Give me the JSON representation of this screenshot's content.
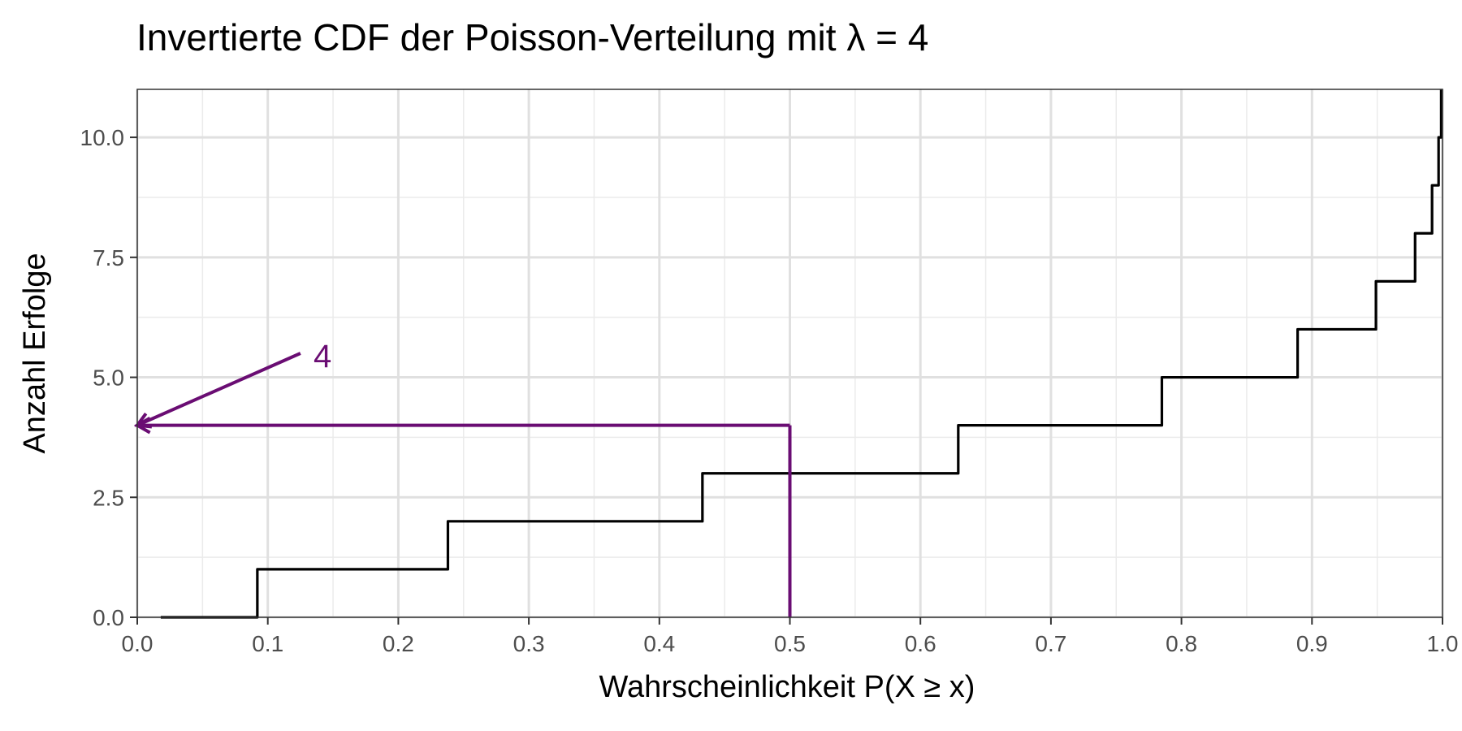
{
  "chart_data": {
    "type": "line",
    "title": "Invertierte CDF der Poisson-Verteilung mit λ = 4",
    "xlabel": "Wahrscheinlichkeit P(X ≥ x)",
    "ylabel": "Anzahl Erfolge",
    "xlim": [
      0,
      1
    ],
    "ylim": [
      0,
      11
    ],
    "x_ticks": [
      0.0,
      0.1,
      0.2,
      0.3,
      0.4,
      0.5,
      0.6,
      0.7,
      0.8,
      0.9,
      1.0
    ],
    "x_tick_labels": [
      "0.0",
      "0.1",
      "0.2",
      "0.3",
      "0.4",
      "0.5",
      "0.6",
      "0.7",
      "0.8",
      "0.9",
      "1.0"
    ],
    "y_ticks": [
      0,
      2.5,
      5,
      7.5,
      10
    ],
    "y_tick_labels": [
      "0.0",
      "2.5",
      "5.0",
      "7.5",
      "10.0"
    ],
    "grid": true,
    "series": [
      {
        "color": "#000000",
        "x": [
          0.018,
          0.092,
          0.238,
          0.433,
          0.629,
          0.785,
          0.889,
          0.949,
          0.979,
          0.992,
          0.997,
          0.999
        ],
        "y": [
          0,
          1,
          2,
          3,
          4,
          5,
          6,
          7,
          8,
          9,
          10,
          11
        ]
      }
    ],
    "annotations": [
      {
        "type": "segment",
        "x": [
          0.5,
          0.5
        ],
        "y": [
          0,
          4
        ],
        "color": "#6a0d73"
      },
      {
        "type": "arrow",
        "x": [
          0.5,
          0.0
        ],
        "y": [
          4,
          4
        ],
        "color": "#6a0d73"
      },
      {
        "type": "arrow",
        "x": [
          0.125,
          0.0
        ],
        "y": [
          5.5,
          4
        ],
        "color": "#6a0d73"
      },
      {
        "type": "label",
        "text": "4",
        "x": 0.135,
        "y": 5.45,
        "color": "#6a0d73"
      }
    ]
  }
}
